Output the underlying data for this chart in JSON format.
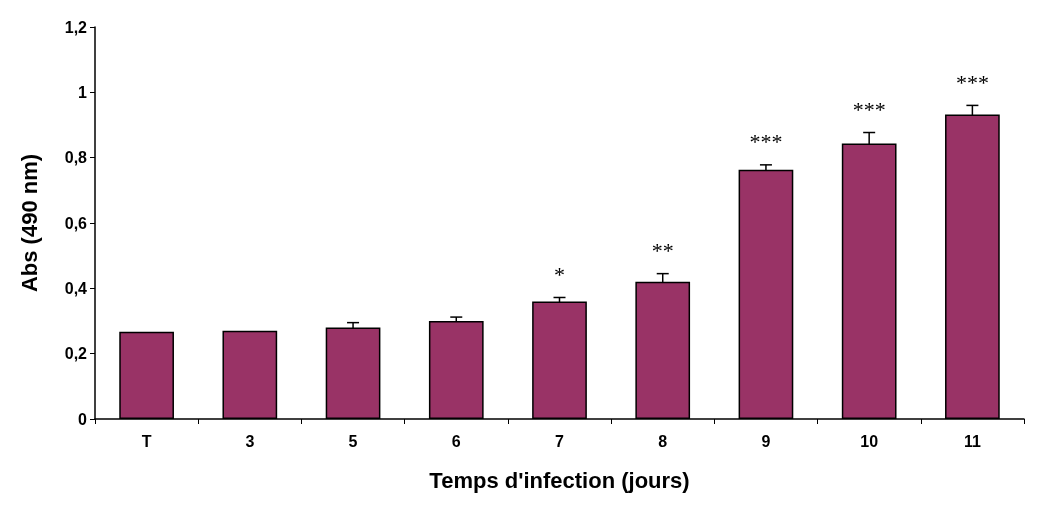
{
  "chart_data": {
    "type": "bar",
    "xlabel": "Temps d'infection (jours)",
    "ylabel": "Abs (490 nm)",
    "categories": [
      "T",
      "3",
      "5",
      "6",
      "7",
      "8",
      "9",
      "10",
      "11"
    ],
    "values": [
      0.267,
      0.27,
      0.28,
      0.3,
      0.36,
      0.42,
      0.763,
      0.843,
      0.932
    ],
    "errors": [
      null,
      null,
      0.015,
      0.012,
      0.012,
      0.025,
      0.015,
      0.034,
      0.028
    ],
    "color": "#993366",
    "ylim": [
      0,
      1.2
    ],
    "yticks": [
      0,
      {
        "value": 0.2,
        "label": "0,2"
      },
      {
        "value": 0.4,
        "label": "0,4"
      },
      {
        "value": 0.6,
        "label": "0,6"
      },
      {
        "value": 0.8,
        "label": "0,8"
      },
      1,
      {
        "value": 1.2,
        "label": "1,2"
      }
    ],
    "grid": false,
    "annotations": [
      "*",
      "**",
      "***",
      "***",
      "***"
    ]
  }
}
